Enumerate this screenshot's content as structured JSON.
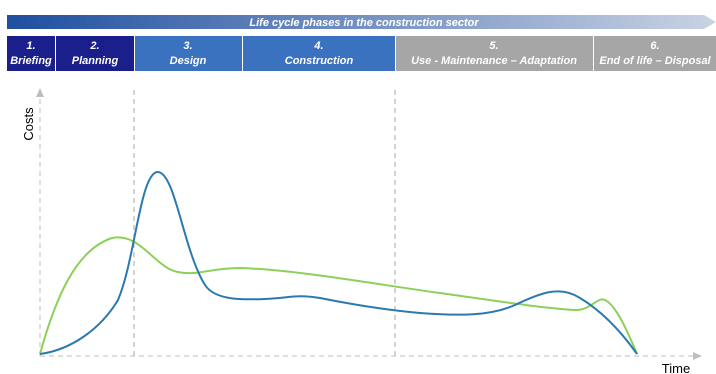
{
  "banner": {
    "title": "Life cycle phases in the construction sector",
    "gradient_start": "#1f4fa0",
    "gradient_end": "#c9d3e3"
  },
  "phases": [
    {
      "number": "1.",
      "name": "Briefing",
      "color": "#1a1f8c"
    },
    {
      "number": "2.",
      "name": "Planning",
      "color": "#1a1f8c"
    },
    {
      "number": "3.",
      "name": "Design",
      "color": "#3b72c0"
    },
    {
      "number": "4.",
      "name": "Construction",
      "color": "#3b72c0"
    },
    {
      "number": "5.",
      "name": "Use - Maintenance – Adaptation",
      "color": "#a6a6a6"
    },
    {
      "number": "6.",
      "name": "End of life – Disposal",
      "color": "#a6a6a6"
    }
  ],
  "axes": {
    "y_label": "Costs",
    "x_label": "Time"
  },
  "curves": {
    "green_color": "#8cd05a",
    "blue_color": "#2a7ab0"
  }
}
